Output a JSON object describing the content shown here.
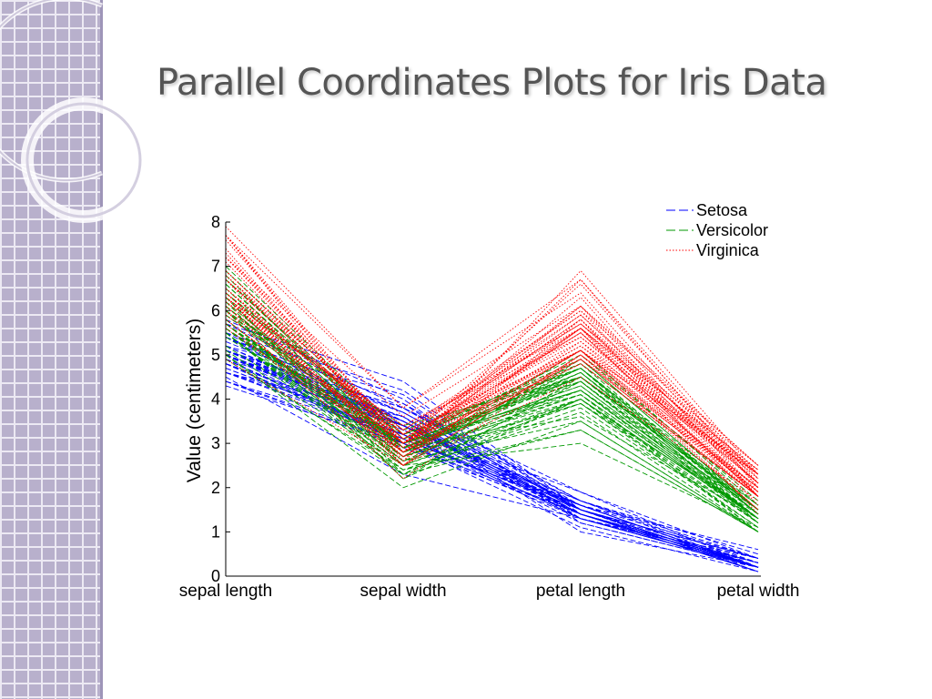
{
  "slide": {
    "title": "Parallel Coordinates Plots for Iris Data"
  },
  "chart_data": {
    "type": "line",
    "subtype": "parallel-coordinates",
    "title": "",
    "xlabel": "",
    "ylabel": "Value (centimeters)",
    "categories": [
      "sepal length",
      "sepal width",
      "petal length",
      "petal width"
    ],
    "ylim": [
      0,
      8
    ],
    "yticks": [
      0,
      1,
      2,
      3,
      4,
      5,
      6,
      7,
      8
    ],
    "grid": false,
    "legend_position": "top-right",
    "series": [
      {
        "name": "Setosa",
        "color": "#0000ff",
        "dash": "dashed",
        "records": [
          [
            5.1,
            3.5,
            1.4,
            0.2
          ],
          [
            4.9,
            3.0,
            1.4,
            0.2
          ],
          [
            4.7,
            3.2,
            1.3,
            0.2
          ],
          [
            4.6,
            3.1,
            1.5,
            0.2
          ],
          [
            5.0,
            3.6,
            1.4,
            0.2
          ],
          [
            5.4,
            3.9,
            1.7,
            0.4
          ],
          [
            4.6,
            3.4,
            1.4,
            0.3
          ],
          [
            5.0,
            3.4,
            1.5,
            0.2
          ],
          [
            4.4,
            2.9,
            1.4,
            0.2
          ],
          [
            4.9,
            3.1,
            1.5,
            0.1
          ],
          [
            5.4,
            3.7,
            1.5,
            0.2
          ],
          [
            4.8,
            3.4,
            1.6,
            0.2
          ],
          [
            4.8,
            3.0,
            1.4,
            0.1
          ],
          [
            4.3,
            3.0,
            1.1,
            0.1
          ],
          [
            5.8,
            4.0,
            1.2,
            0.2
          ],
          [
            5.7,
            4.4,
            1.5,
            0.4
          ],
          [
            5.4,
            3.9,
            1.3,
            0.4
          ],
          [
            5.1,
            3.5,
            1.4,
            0.3
          ],
          [
            5.7,
            3.8,
            1.7,
            0.3
          ],
          [
            5.1,
            3.8,
            1.5,
            0.3
          ],
          [
            5.4,
            3.4,
            1.7,
            0.2
          ],
          [
            5.1,
            3.7,
            1.5,
            0.4
          ],
          [
            4.6,
            3.6,
            1.0,
            0.2
          ],
          [
            5.1,
            3.3,
            1.7,
            0.5
          ],
          [
            4.8,
            3.4,
            1.9,
            0.2
          ],
          [
            5.0,
            3.0,
            1.6,
            0.2
          ],
          [
            5.0,
            3.4,
            1.6,
            0.4
          ],
          [
            5.2,
            3.5,
            1.5,
            0.2
          ],
          [
            5.2,
            3.4,
            1.4,
            0.2
          ],
          [
            4.7,
            3.2,
            1.6,
            0.2
          ],
          [
            4.8,
            3.1,
            1.6,
            0.2
          ],
          [
            5.4,
            3.4,
            1.5,
            0.4
          ],
          [
            5.2,
            4.1,
            1.5,
            0.1
          ],
          [
            5.5,
            4.2,
            1.4,
            0.2
          ],
          [
            4.9,
            3.1,
            1.5,
            0.2
          ],
          [
            5.0,
            3.2,
            1.2,
            0.2
          ],
          [
            5.5,
            3.5,
            1.3,
            0.2
          ],
          [
            4.9,
            3.6,
            1.4,
            0.1
          ],
          [
            4.4,
            3.0,
            1.3,
            0.2
          ],
          [
            5.1,
            3.4,
            1.5,
            0.2
          ],
          [
            5.0,
            3.5,
            1.3,
            0.3
          ],
          [
            4.5,
            2.3,
            1.3,
            0.3
          ],
          [
            4.4,
            3.2,
            1.3,
            0.2
          ],
          [
            5.0,
            3.5,
            1.6,
            0.6
          ],
          [
            5.1,
            3.8,
            1.9,
            0.4
          ],
          [
            4.8,
            3.0,
            1.4,
            0.3
          ],
          [
            5.1,
            3.8,
            1.6,
            0.2
          ],
          [
            4.6,
            3.2,
            1.4,
            0.2
          ],
          [
            5.3,
            3.7,
            1.5,
            0.2
          ],
          [
            5.0,
            3.3,
            1.4,
            0.2
          ]
        ]
      },
      {
        "name": "Versicolor",
        "color": "#009900",
        "dash": "dashed",
        "records": [
          [
            7.0,
            3.2,
            4.7,
            1.4
          ],
          [
            6.4,
            3.2,
            4.5,
            1.5
          ],
          [
            6.9,
            3.1,
            4.9,
            1.5
          ],
          [
            5.5,
            2.3,
            4.0,
            1.3
          ],
          [
            6.5,
            2.8,
            4.6,
            1.5
          ],
          [
            5.7,
            2.8,
            4.5,
            1.3
          ],
          [
            6.3,
            3.3,
            4.7,
            1.6
          ],
          [
            4.9,
            2.4,
            3.3,
            1.0
          ],
          [
            6.6,
            2.9,
            4.6,
            1.3
          ],
          [
            5.2,
            2.7,
            3.9,
            1.4
          ],
          [
            5.0,
            2.0,
            3.5,
            1.0
          ],
          [
            5.9,
            3.0,
            4.2,
            1.5
          ],
          [
            6.0,
            2.2,
            4.0,
            1.0
          ],
          [
            6.1,
            2.9,
            4.7,
            1.4
          ],
          [
            5.6,
            2.9,
            3.6,
            1.3
          ],
          [
            6.7,
            3.1,
            4.4,
            1.4
          ],
          [
            5.6,
            3.0,
            4.5,
            1.5
          ],
          [
            5.8,
            2.7,
            4.1,
            1.0
          ],
          [
            6.2,
            2.2,
            4.5,
            1.5
          ],
          [
            5.6,
            2.5,
            3.9,
            1.1
          ],
          [
            5.9,
            3.2,
            4.8,
            1.8
          ],
          [
            6.1,
            2.8,
            4.0,
            1.3
          ],
          [
            6.3,
            2.5,
            4.9,
            1.5
          ],
          [
            6.1,
            2.8,
            4.7,
            1.2
          ],
          [
            6.4,
            2.9,
            4.3,
            1.3
          ],
          [
            6.6,
            3.0,
            4.4,
            1.4
          ],
          [
            6.8,
            2.8,
            4.8,
            1.4
          ],
          [
            6.7,
            3.0,
            5.0,
            1.7
          ],
          [
            6.0,
            2.9,
            4.5,
            1.5
          ],
          [
            5.7,
            2.6,
            3.5,
            1.0
          ],
          [
            5.5,
            2.4,
            3.8,
            1.1
          ],
          [
            5.5,
            2.4,
            3.7,
            1.0
          ],
          [
            5.8,
            2.7,
            3.9,
            1.2
          ],
          [
            6.0,
            2.7,
            5.1,
            1.6
          ],
          [
            5.4,
            3.0,
            4.5,
            1.5
          ],
          [
            6.0,
            3.4,
            4.5,
            1.6
          ],
          [
            6.7,
            3.1,
            4.7,
            1.5
          ],
          [
            6.3,
            2.3,
            4.4,
            1.3
          ],
          [
            5.6,
            3.0,
            4.1,
            1.3
          ],
          [
            5.5,
            2.5,
            4.0,
            1.3
          ],
          [
            5.5,
            2.6,
            4.4,
            1.2
          ],
          [
            6.1,
            3.0,
            4.6,
            1.4
          ],
          [
            5.8,
            2.6,
            4.0,
            1.2
          ],
          [
            5.0,
            2.3,
            3.3,
            1.0
          ],
          [
            5.6,
            2.7,
            4.2,
            1.3
          ],
          [
            5.7,
            3.0,
            4.2,
            1.2
          ],
          [
            5.7,
            2.9,
            4.2,
            1.3
          ],
          [
            6.2,
            2.9,
            4.3,
            1.3
          ],
          [
            5.1,
            2.5,
            3.0,
            1.1
          ],
          [
            5.7,
            2.8,
            4.1,
            1.3
          ]
        ]
      },
      {
        "name": "Virginica",
        "color": "#ff0000",
        "dash": "dotted",
        "records": [
          [
            6.3,
            3.3,
            6.0,
            2.5
          ],
          [
            5.8,
            2.7,
            5.1,
            1.9
          ],
          [
            7.1,
            3.0,
            5.9,
            2.1
          ],
          [
            6.3,
            2.9,
            5.6,
            1.8
          ],
          [
            6.5,
            3.0,
            5.8,
            2.2
          ],
          [
            7.6,
            3.0,
            6.6,
            2.1
          ],
          [
            4.9,
            2.5,
            4.5,
            1.7
          ],
          [
            7.3,
            2.9,
            6.3,
            1.8
          ],
          [
            6.7,
            2.5,
            5.8,
            1.8
          ],
          [
            7.2,
            3.6,
            6.1,
            2.5
          ],
          [
            6.5,
            3.2,
            5.1,
            2.0
          ],
          [
            6.4,
            2.7,
            5.3,
            1.9
          ],
          [
            6.8,
            3.0,
            5.5,
            2.1
          ],
          [
            5.7,
            2.5,
            5.0,
            2.0
          ],
          [
            5.8,
            2.8,
            5.1,
            2.4
          ],
          [
            6.4,
            3.2,
            5.3,
            2.3
          ],
          [
            6.5,
            3.0,
            5.5,
            1.8
          ],
          [
            7.7,
            3.8,
            6.7,
            2.2
          ],
          [
            7.7,
            2.6,
            6.9,
            2.3
          ],
          [
            6.0,
            2.2,
            5.0,
            1.5
          ],
          [
            6.9,
            3.2,
            5.7,
            2.3
          ],
          [
            5.6,
            2.8,
            4.9,
            2.0
          ],
          [
            7.7,
            2.8,
            6.7,
            2.0
          ],
          [
            6.3,
            2.7,
            4.9,
            1.8
          ],
          [
            6.7,
            3.3,
            5.7,
            2.1
          ],
          [
            7.2,
            3.2,
            6.0,
            1.8
          ],
          [
            6.2,
            2.8,
            4.8,
            1.8
          ],
          [
            6.1,
            3.0,
            4.9,
            1.8
          ],
          [
            6.4,
            2.8,
            5.6,
            2.1
          ],
          [
            7.2,
            3.0,
            5.8,
            1.6
          ],
          [
            7.4,
            2.8,
            6.1,
            1.9
          ],
          [
            7.9,
            3.8,
            6.4,
            2.0
          ],
          [
            6.4,
            2.8,
            5.6,
            2.2
          ],
          [
            6.3,
            2.8,
            5.1,
            1.5
          ],
          [
            6.1,
            2.6,
            5.6,
            1.4
          ],
          [
            7.7,
            3.0,
            6.1,
            2.3
          ],
          [
            6.3,
            3.4,
            5.6,
            2.4
          ],
          [
            6.4,
            3.1,
            5.5,
            1.8
          ],
          [
            6.0,
            3.0,
            4.8,
            1.8
          ],
          [
            6.9,
            3.1,
            5.4,
            2.1
          ],
          [
            6.7,
            3.1,
            5.6,
            2.4
          ],
          [
            6.9,
            3.1,
            5.1,
            2.3
          ],
          [
            5.8,
            2.7,
            5.1,
            1.9
          ],
          [
            6.8,
            3.2,
            5.9,
            2.3
          ],
          [
            6.7,
            3.3,
            5.7,
            2.5
          ],
          [
            6.7,
            3.0,
            5.2,
            2.3
          ],
          [
            6.3,
            2.5,
            5.0,
            1.9
          ],
          [
            6.5,
            3.0,
            5.2,
            2.0
          ],
          [
            6.2,
            3.4,
            5.4,
            2.3
          ],
          [
            5.9,
            3.0,
            5.1,
            1.8
          ]
        ]
      }
    ]
  }
}
